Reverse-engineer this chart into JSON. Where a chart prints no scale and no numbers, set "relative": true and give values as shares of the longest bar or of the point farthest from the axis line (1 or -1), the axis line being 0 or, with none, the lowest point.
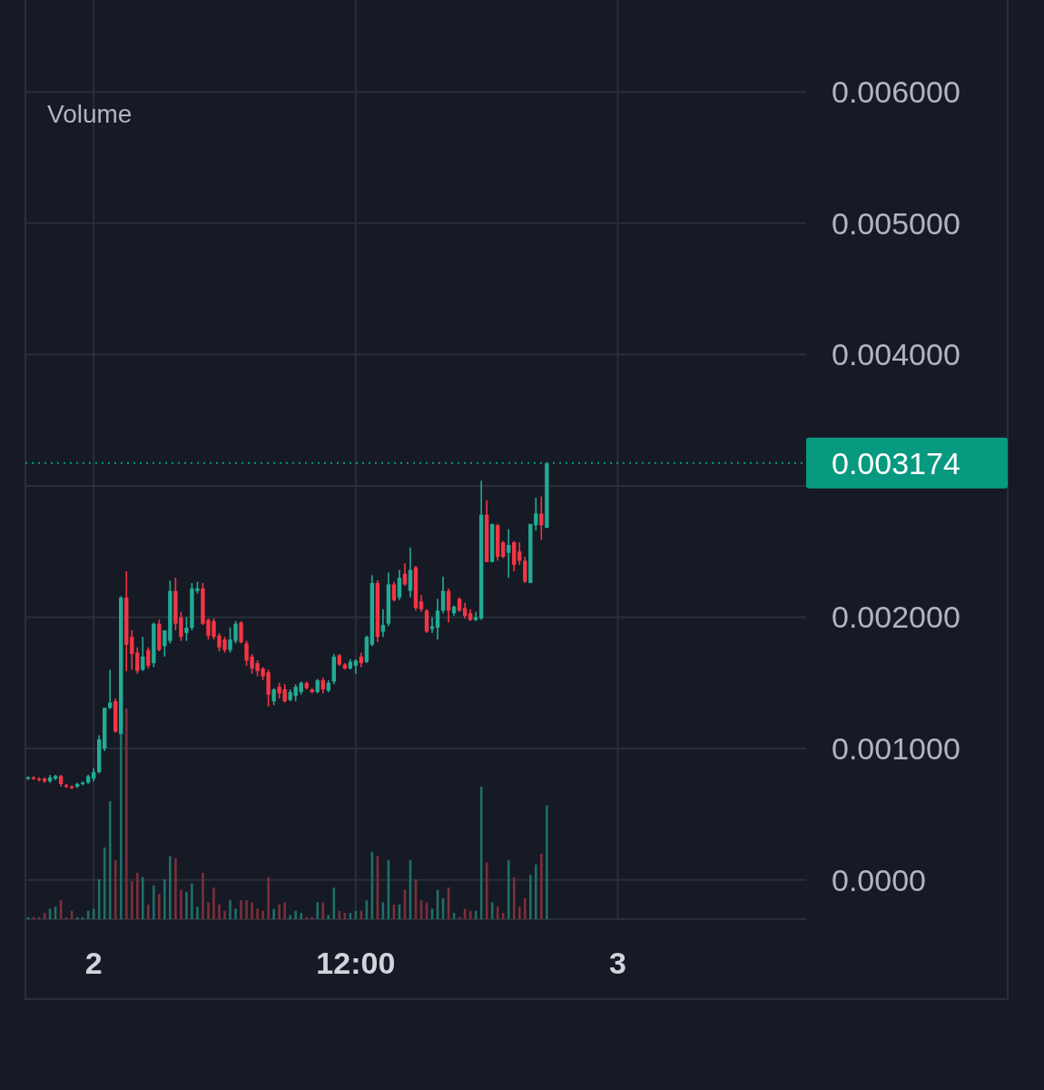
{
  "chart_data": [
    {
      "type": "candlestick",
      "ylim": [
        -0.0003,
        0.0067
      ],
      "yticks": [
        {
          "value": 0,
          "label": "0.0000"
        },
        {
          "value": 0.001,
          "label": "0.001000"
        },
        {
          "value": 0.002,
          "label": "0.002000"
        },
        {
          "value": 0.003,
          "label": null
        },
        {
          "value": 0.004,
          "label": "0.004000"
        },
        {
          "value": 0.005,
          "label": "0.005000"
        },
        {
          "value": 0.006,
          "label": "0.006000"
        }
      ],
      "grid": true,
      "ref_lines": [
        {
          "axis": "y",
          "value": 0.003174,
          "label": "0.003174",
          "color": "#089981",
          "line_style": "dotted"
        }
      ],
      "categories": [
        null,
        null,
        null,
        null,
        null,
        null,
        null,
        null,
        null,
        null,
        null,
        null,
        "2",
        null,
        null,
        null,
        null,
        null,
        null,
        null,
        null,
        null,
        null,
        null,
        null,
        null,
        null,
        null,
        null,
        null,
        null,
        null,
        null,
        null,
        null,
        null,
        null,
        null,
        null,
        null,
        null,
        null,
        null,
        null,
        null,
        null,
        null,
        null,
        null,
        null,
        null,
        null,
        null,
        null,
        null,
        null,
        null,
        null,
        null,
        null,
        "12:00",
        null,
        null,
        null,
        null,
        null,
        null,
        null,
        null,
        null,
        null,
        null,
        null,
        null,
        null,
        null,
        null,
        null,
        null,
        null,
        null,
        null,
        null,
        null,
        null,
        null,
        null,
        null,
        null,
        null,
        null,
        null,
        null,
        null,
        null,
        null,
        null,
        null,
        null,
        null,
        null,
        null,
        null,
        null,
        null,
        null,
        null,
        null,
        "3",
        null,
        null,
        null,
        null,
        null,
        null,
        null,
        null,
        null,
        null,
        null,
        null,
        null,
        null,
        null,
        null,
        null,
        null,
        null,
        null,
        null,
        null,
        null,
        null,
        null,
        null,
        null,
        null,
        null,
        null,
        null,
        null,
        null,
        null
      ],
      "ohlc": [
        [
          0.00077,
          0.00079,
          0.00076,
          0.00078
        ],
        [
          0.00078,
          0.00079,
          0.00076,
          0.00077
        ],
        [
          0.00077,
          0.00078,
          0.00075,
          0.00076
        ],
        [
          0.00077,
          0.00078,
          0.00074,
          0.00075
        ],
        [
          0.00075,
          0.0008,
          0.00074,
          0.00078
        ],
        [
          0.00077,
          0.0008,
          0.00076,
          0.00079
        ],
        [
          0.00079,
          0.0008,
          0.00071,
          0.00073
        ],
        [
          0.00072,
          0.00073,
          0.0007,
          0.00071
        ],
        [
          0.00071,
          0.00072,
          0.00069,
          0.0007
        ],
        [
          0.00071,
          0.00074,
          0.0007,
          0.00073
        ],
        [
          0.00073,
          0.00075,
          0.00072,
          0.00074
        ],
        [
          0.00074,
          0.0008,
          0.00073,
          0.00079
        ],
        [
          0.00077,
          0.00085,
          0.00075,
          0.00082
        ],
        [
          0.00082,
          0.0011,
          0.00081,
          0.00107
        ],
        [
          0.001,
          0.00131,
          0.00098,
          0.00131
        ],
        [
          0.00131,
          0.0016,
          0.0013,
          0.00135
        ],
        [
          0.00136,
          0.00138,
          0.00112,
          0.00113
        ],
        [
          0.00111,
          0.00216,
          0.0011,
          0.00215
        ],
        [
          0.00215,
          0.00235,
          0.00159,
          0.00179
        ],
        [
          0.00185,
          0.0019,
          0.0016,
          0.00172
        ],
        [
          0.00173,
          0.00177,
          0.00157,
          0.00159
        ],
        [
          0.0016,
          0.00185,
          0.00159,
          0.0017
        ],
        [
          0.00175,
          0.00177,
          0.00161,
          0.00163
        ],
        [
          0.00165,
          0.00196,
          0.00162,
          0.00195
        ],
        [
          0.00195,
          0.00198,
          0.00174,
          0.00175
        ],
        [
          0.00178,
          0.0019,
          0.0017,
          0.0019
        ],
        [
          0.00182,
          0.00228,
          0.0018,
          0.0022
        ],
        [
          0.0022,
          0.0023,
          0.0019,
          0.00195
        ],
        [
          0.002,
          0.00204,
          0.00182,
          0.00185
        ],
        [
          0.00188,
          0.002,
          0.00182,
          0.00192
        ],
        [
          0.00192,
          0.00226,
          0.0019,
          0.00222
        ],
        [
          0.0022,
          0.00227,
          0.00218,
          0.00222
        ],
        [
          0.00222,
          0.00226,
          0.00194,
          0.00195
        ],
        [
          0.00198,
          0.00199,
          0.00183,
          0.00186
        ],
        [
          0.00197,
          0.00199,
          0.00183,
          0.00185
        ],
        [
          0.00186,
          0.00188,
          0.00174,
          0.00177
        ],
        [
          0.00183,
          0.00185,
          0.00173,
          0.00175
        ],
        [
          0.00175,
          0.00192,
          0.00173,
          0.00183
        ],
        [
          0.00182,
          0.00197,
          0.0018,
          0.00195
        ],
        [
          0.00196,
          0.00197,
          0.0018,
          0.00181
        ],
        [
          0.0018,
          0.00182,
          0.00163,
          0.00167
        ],
        [
          0.0017,
          0.00172,
          0.00157,
          0.00161
        ],
        [
          0.00165,
          0.00167,
          0.00155,
          0.00159
        ],
        [
          0.00161,
          0.00162,
          0.00152,
          0.00155
        ],
        [
          0.00158,
          0.0016,
          0.00132,
          0.00141
        ],
        [
          0.00136,
          0.00146,
          0.00133,
          0.00145
        ],
        [
          0.00147,
          0.0015,
          0.00138,
          0.00142
        ],
        [
          0.00145,
          0.00149,
          0.00135,
          0.00136
        ],
        [
          0.00137,
          0.00145,
          0.00136,
          0.00143
        ],
        [
          0.0014,
          0.00149,
          0.00136,
          0.00147
        ],
        [
          0.00143,
          0.00151,
          0.00141,
          0.0015
        ],
        [
          0.0015,
          0.00151,
          0.00145,
          0.00146
        ],
        [
          0.00145,
          0.00146,
          0.00142,
          0.00143
        ],
        [
          0.00143,
          0.00153,
          0.00142,
          0.00152
        ],
        [
          0.00152,
          0.00154,
          0.00142,
          0.00145
        ],
        [
          0.00144,
          0.00152,
          0.00143,
          0.0015
        ],
        [
          0.00151,
          0.00172,
          0.00149,
          0.0017
        ],
        [
          0.00171,
          0.00172,
          0.00163,
          0.00164
        ],
        [
          0.00164,
          0.00165,
          0.0016,
          0.00161
        ],
        [
          0.00161,
          0.00168,
          0.0016,
          0.00166
        ],
        [
          0.00163,
          0.00168,
          0.00157,
          0.00167
        ],
        [
          0.0017,
          0.00173,
          0.00162,
          0.00165
        ],
        [
          0.00166,
          0.00186,
          0.00165,
          0.00185
        ],
        [
          0.00179,
          0.00232,
          0.00178,
          0.00226
        ],
        [
          0.00226,
          0.00228,
          0.00181,
          0.00185
        ],
        [
          0.00189,
          0.00206,
          0.00185,
          0.00194
        ],
        [
          0.00195,
          0.00234,
          0.00193,
          0.00225
        ],
        [
          0.00225,
          0.00227,
          0.00212,
          0.00213
        ],
        [
          0.00215,
          0.00236,
          0.00213,
          0.0023
        ],
        [
          0.00233,
          0.00241,
          0.00224,
          0.00225
        ],
        [
          0.0022,
          0.00253,
          0.00215,
          0.00236
        ],
        [
          0.00238,
          0.00239,
          0.00205,
          0.00207
        ],
        [
          0.00212,
          0.00217,
          0.00204,
          0.00206
        ],
        [
          0.00205,
          0.00206,
          0.00188,
          0.00189
        ],
        [
          0.00191,
          0.002,
          0.00188,
          0.00193
        ],
        [
          0.00192,
          0.00214,
          0.00183,
          0.00205
        ],
        [
          0.00205,
          0.00231,
          0.00203,
          0.0022
        ],
        [
          0.0022,
          0.00222,
          0.00196,
          0.00205
        ],
        [
          0.00203,
          0.00209,
          0.00201,
          0.00208
        ],
        [
          0.00214,
          0.00215,
          0.00204,
          0.00205
        ],
        [
          0.00207,
          0.00211,
          0.00199,
          0.00201
        ],
        [
          0.00203,
          0.00206,
          0.00197,
          0.00198
        ],
        [
          0.00198,
          0.00204,
          0.00197,
          0.002
        ],
        [
          0.00199,
          0.00304,
          0.00198,
          0.00278
        ],
        [
          0.00278,
          0.00289,
          0.00242,
          0.00242
        ],
        [
          0.00242,
          0.00271,
          0.00242,
          0.00271
        ],
        [
          0.0027,
          0.00271,
          0.00243,
          0.00246
        ],
        [
          0.00257,
          0.00258,
          0.00245,
          0.00246
        ],
        [
          0.00249,
          0.00267,
          0.0023,
          0.00255
        ],
        [
          0.00257,
          0.00258,
          0.00235,
          0.0024
        ],
        [
          0.0025,
          0.00257,
          0.0024,
          0.00243
        ],
        [
          0.00243,
          0.00246,
          0.00226,
          0.00227
        ],
        [
          0.00226,
          0.00271,
          0.00226,
          0.00271
        ],
        [
          0.0027,
          0.00291,
          0.00266,
          0.00279
        ],
        [
          0.00279,
          0.00292,
          0.00259,
          0.0027
        ],
        [
          0.00268,
          0.003174,
          0.00268,
          0.003174
        ],
        null,
        null,
        null,
        null,
        null,
        null,
        null,
        null,
        null,
        null,
        null,
        null,
        null,
        null,
        null,
        null,
        null,
        null,
        null,
        null,
        null,
        null,
        null,
        null,
        null,
        null,
        null,
        null,
        null,
        null,
        null,
        null,
        null,
        null,
        null,
        null,
        null,
        null,
        null,
        null,
        null,
        null,
        null,
        null,
        null,
        null,
        null
      ],
      "colors": [
        "#22ab94",
        "#f23645",
        "#f23645",
        "#f23645",
        "#22ab94",
        "#22ab94",
        "#f23645",
        "#f23645",
        "#f23645",
        "#22ab94",
        "#22ab94",
        "#22ab94",
        "#22ab94",
        "#22ab94",
        "#22ab94",
        "#22ab94",
        "#f23645",
        "#22ab94",
        "#f23645",
        "#f23645",
        "#f23645",
        "#22ab94",
        "#f23645",
        "#22ab94",
        "#f23645",
        "#22ab94",
        "#22ab94",
        "#f23645",
        "#f23645",
        "#22ab94",
        "#22ab94",
        "#22ab94",
        "#f23645",
        "#f23645",
        "#f23645",
        "#f23645",
        "#f23645",
        "#22ab94",
        "#22ab94",
        "#f23645",
        "#f23645",
        "#f23645",
        "#f23645",
        "#f23645",
        "#f23645",
        "#22ab94",
        "#f23645",
        "#f23645",
        "#22ab94",
        "#22ab94",
        "#22ab94",
        "#f23645",
        "#f23645",
        "#22ab94",
        "#f23645",
        "#22ab94",
        "#22ab94",
        "#f23645",
        "#f23645",
        "#22ab94",
        "#22ab94",
        "#f23645",
        "#22ab94",
        "#22ab94",
        "#f23645",
        "#22ab94",
        "#22ab94",
        "#f23645",
        "#22ab94",
        "#f23645",
        "#22ab94",
        "#f23645",
        "#f23645",
        "#f23645",
        "#22ab94",
        "#22ab94",
        "#22ab94",
        "#f23645",
        "#22ab94",
        "#f23645",
        "#f23645",
        "#f23645",
        "#22ab94",
        "#22ab94",
        "#f23645",
        "#22ab94",
        "#f23645",
        "#f23645",
        "#22ab94",
        "#f23645",
        "#f23645",
        "#f23645",
        "#22ab94",
        "#22ab94",
        "#f23645",
        "#22ab94",
        null,
        null,
        null,
        null,
        null,
        null,
        null,
        null,
        null,
        null,
        null,
        null,
        null,
        null,
        null,
        null,
        null,
        null,
        null,
        null,
        null,
        null,
        null,
        null,
        null,
        null,
        null,
        null,
        null,
        null,
        null,
        null,
        null,
        null,
        null,
        null,
        null,
        null,
        null,
        null,
        null,
        null,
        null,
        null,
        null,
        null,
        null
      ]
    },
    {
      "type": "bar",
      "title": "Volume",
      "relative": true,
      "categories": [
        null,
        null,
        null,
        null,
        null,
        null,
        null,
        null,
        null,
        null,
        null,
        null,
        null,
        null,
        null,
        null,
        null,
        null,
        null,
        null,
        null,
        null,
        null,
        null,
        null,
        null,
        null,
        null,
        null,
        null,
        null,
        null,
        null,
        null,
        null,
        null,
        null,
        null,
        null,
        null,
        null,
        null,
        null,
        null,
        null,
        null,
        null,
        null,
        null,
        null,
        null,
        null,
        null,
        null,
        null,
        null,
        null,
        null,
        null,
        null,
        null,
        null,
        null,
        null,
        null,
        null,
        null,
        null,
        null,
        null,
        null,
        null,
        null,
        null,
        null,
        null,
        null,
        null,
        null,
        null,
        null,
        null,
        null,
        null,
        null,
        null,
        null,
        null,
        null,
        null,
        null,
        null,
        null,
        null,
        null,
        null
      ],
      "values": [
        0.01,
        0.01,
        0.01,
        0.03,
        0.05,
        0.06,
        0.09,
        0.01,
        0.04,
        0.01,
        0.01,
        0.04,
        0.05,
        0.19,
        0.34,
        0.56,
        0.28,
        0.88,
        1,
        0.18,
        0.22,
        0.2,
        0.07,
        0.16,
        0.12,
        0.19,
        0.3,
        0.29,
        0.14,
        0.13,
        0.17,
        0.06,
        0.22,
        0.08,
        0.15,
        0.07,
        0.04,
        0.09,
        0.05,
        0.09,
        0.09,
        0.08,
        0.05,
        0.04,
        0.2,
        0.05,
        0.07,
        0.08,
        0.02,
        0.04,
        0.03,
        0.01,
        0.01,
        0.08,
        0.08,
        0.02,
        0.15,
        0.04,
        0.03,
        0.03,
        0.04,
        0.04,
        0.09,
        0.32,
        0.3,
        0.08,
        0.28,
        0.07,
        0.07,
        0.14,
        0.28,
        0.19,
        0.09,
        0.08,
        0.05,
        0.14,
        0.1,
        0.15,
        0.03,
        0.01,
        0.05,
        0.04,
        0.04,
        0.63,
        0.27,
        0.08,
        0.06,
        0.03,
        0.28,
        0.2,
        0.06,
        0.1,
        0.21,
        0.26,
        0.31,
        0.54
      ],
      "colors": [
        "#1e6f67",
        "#7b2f3b",
        "#7b2f3b",
        "#7b2f3b",
        "#1e6f67",
        "#1e6f67",
        "#7b2f3b",
        "#7b2f3b",
        "#7b2f3b",
        "#1e6f67",
        "#1e6f67",
        "#1e6f67",
        "#1e6f67",
        "#1e6f67",
        "#1e6f67",
        "#1e6f67",
        "#7b2f3b",
        "#1e6f67",
        "#7b2f3b",
        "#7b2f3b",
        "#7b2f3b",
        "#1e6f67",
        "#7b2f3b",
        "#1e6f67",
        "#7b2f3b",
        "#1e6f67",
        "#1e6f67",
        "#7b2f3b",
        "#7b2f3b",
        "#1e6f67",
        "#1e6f67",
        "#1e6f67",
        "#7b2f3b",
        "#7b2f3b",
        "#7b2f3b",
        "#7b2f3b",
        "#7b2f3b",
        "#1e6f67",
        "#1e6f67",
        "#7b2f3b",
        "#7b2f3b",
        "#7b2f3b",
        "#7b2f3b",
        "#7b2f3b",
        "#7b2f3b",
        "#1e6f67",
        "#7b2f3b",
        "#7b2f3b",
        "#1e6f67",
        "#1e6f67",
        "#1e6f67",
        "#7b2f3b",
        "#7b2f3b",
        "#1e6f67",
        "#7b2f3b",
        "#1e6f67",
        "#1e6f67",
        "#7b2f3b",
        "#7b2f3b",
        "#1e6f67",
        "#1e6f67",
        "#7b2f3b",
        "#1e6f67",
        "#1e6f67",
        "#7b2f3b",
        "#1e6f67",
        "#1e6f67",
        "#7b2f3b",
        "#1e6f67",
        "#7b2f3b",
        "#1e6f67",
        "#7b2f3b",
        "#7b2f3b",
        "#7b2f3b",
        "#1e6f67",
        "#1e6f67",
        "#1e6f67",
        "#7b2f3b",
        "#1e6f67",
        "#7b2f3b",
        "#7b2f3b",
        "#7b2f3b",
        "#1e6f67",
        "#1e6f67",
        "#7b2f3b",
        "#1e6f67",
        "#7b2f3b",
        "#7b2f3b",
        "#1e6f67",
        "#7b2f3b",
        "#7b2f3b",
        "#7b2f3b",
        "#1e6f67",
        "#1e6f67",
        "#7b2f3b",
        "#1e6f67"
      ]
    }
  ]
}
